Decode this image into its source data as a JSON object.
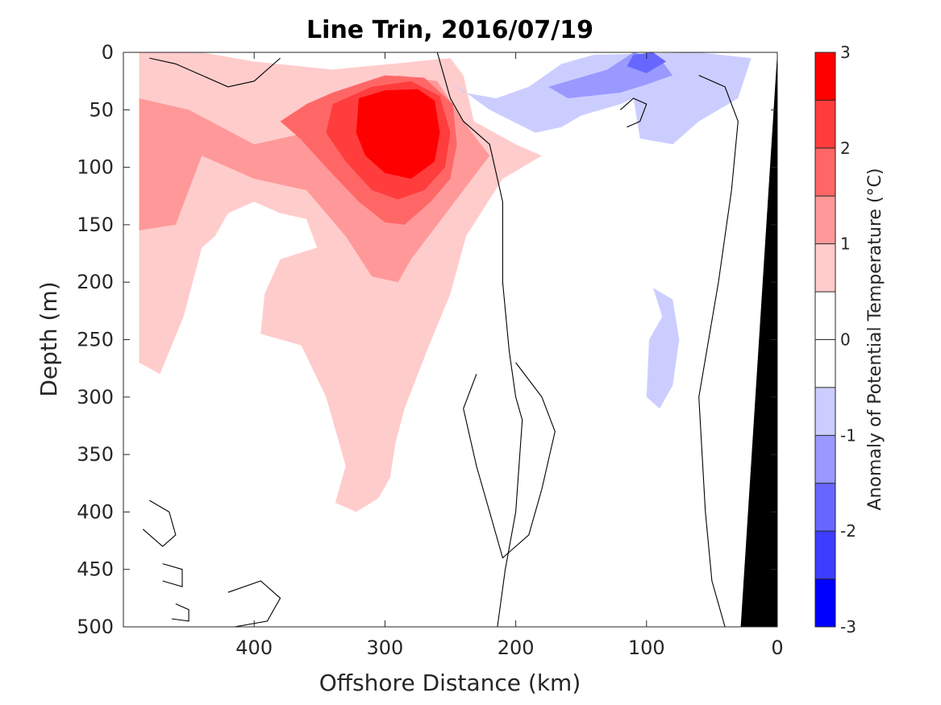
{
  "chart_data": {
    "type": "heatmap",
    "title": "Line Trin, 2016/07/19",
    "xlabel": "Offshore Distance (km)",
    "ylabel": "Depth (m)",
    "xlim": [
      500,
      0
    ],
    "ylim": [
      500,
      0
    ],
    "x_reversed": true,
    "y_reversed": true,
    "xticks": [
      400,
      300,
      200,
      100,
      0
    ],
    "yticks": [
      0,
      50,
      100,
      150,
      200,
      250,
      300,
      350,
      400,
      450,
      500
    ],
    "colorbar": {
      "label": "Anomaly of Potential Temperature (°C)",
      "ticks": [
        3,
        2,
        1,
        0,
        -1,
        -2,
        -3
      ],
      "levels": [
        3,
        2.5,
        2,
        1.5,
        1,
        0.5,
        0,
        -0.5,
        -1,
        -1.5,
        -2,
        -2.5,
        -3
      ],
      "colors": [
        "#ff0000",
        "#ff3d3d",
        "#ff6767",
        "#ff9999",
        "#ffcccc",
        "#ffffff",
        "#ffffff",
        "#cccdff",
        "#9999ff",
        "#6767ff",
        "#3d3dff",
        "#0000ff"
      ]
    },
    "regions": [
      {
        "name": "anomaly ~ +0.5 to +1",
        "level_low": 0.5,
        "color": "#ffcccc",
        "points": [
          [
            488,
            0
          ],
          [
            440,
            0
          ],
          [
            400,
            8
          ],
          [
            340,
            15
          ],
          [
            250,
            5
          ],
          [
            240,
            20
          ],
          [
            232,
            60
          ],
          [
            200,
            80
          ],
          [
            180,
            90
          ],
          [
            210,
            110
          ],
          [
            238,
            160
          ],
          [
            250,
            210
          ],
          [
            268,
            260
          ],
          [
            285,
            310
          ],
          [
            292,
            340
          ],
          [
            296,
            370
          ],
          [
            305,
            388
          ],
          [
            322,
            400
          ],
          [
            338,
            392
          ],
          [
            330,
            360
          ],
          [
            345,
            300
          ],
          [
            364,
            255
          ],
          [
            395,
            245
          ],
          [
            392,
            210
          ],
          [
            380,
            180
          ],
          [
            352,
            170
          ],
          [
            360,
            145
          ],
          [
            380,
            140
          ],
          [
            400,
            130
          ],
          [
            420,
            140
          ],
          [
            430,
            160
          ],
          [
            440,
            170
          ],
          [
            454,
            230
          ],
          [
            472,
            280
          ],
          [
            488,
            270
          ]
        ]
      },
      {
        "name": "anomaly ~ +1 to +1.5",
        "level_low": 1.0,
        "color": "#ff9999",
        "points": [
          [
            488,
            40
          ],
          [
            450,
            50
          ],
          [
            400,
            80
          ],
          [
            360,
            70
          ],
          [
            330,
            40
          ],
          [
            290,
            20
          ],
          [
            260,
            25
          ],
          [
            240,
            60
          ],
          [
            220,
            90
          ],
          [
            240,
            120
          ],
          [
            260,
            150
          ],
          [
            280,
            180
          ],
          [
            290,
            200
          ],
          [
            310,
            195
          ],
          [
            330,
            160
          ],
          [
            360,
            120
          ],
          [
            400,
            110
          ],
          [
            440,
            90
          ],
          [
            460,
            150
          ],
          [
            488,
            155
          ]
        ]
      },
      {
        "name": "anomaly ~ +1.5 to +2",
        "level_low": 1.5,
        "color": "#ff6767",
        "points": [
          [
            360,
            45
          ],
          [
            340,
            35
          ],
          [
            300,
            20
          ],
          [
            270,
            22
          ],
          [
            248,
            45
          ],
          [
            245,
            80
          ],
          [
            250,
            110
          ],
          [
            265,
            130
          ],
          [
            285,
            150
          ],
          [
            300,
            148
          ],
          [
            320,
            130
          ],
          [
            345,
            100
          ],
          [
            365,
            75
          ],
          [
            380,
            60
          ]
        ]
      },
      {
        "name": "anomaly ~ +2 to +2.5",
        "level_low": 2.0,
        "color": "#ff3d3d",
        "points": [
          [
            340,
            45
          ],
          [
            310,
            30
          ],
          [
            280,
            25
          ],
          [
            258,
            38
          ],
          [
            250,
            70
          ],
          [
            254,
            100
          ],
          [
            270,
            120
          ],
          [
            290,
            128
          ],
          [
            310,
            120
          ],
          [
            330,
            95
          ],
          [
            345,
            70
          ]
        ]
      },
      {
        "name": "anomaly ~ +2.5 to +3",
        "level_low": 2.5,
        "color": "#ff0000",
        "points": [
          [
            320,
            40
          ],
          [
            300,
            33
          ],
          [
            275,
            32
          ],
          [
            262,
            42
          ],
          [
            258,
            70
          ],
          [
            262,
            95
          ],
          [
            280,
            110
          ],
          [
            300,
            105
          ],
          [
            315,
            90
          ],
          [
            322,
            70
          ]
        ]
      },
      {
        "name": "anomaly ~ -0.5 to -1 (surface)",
        "level_low": -1.0,
        "color": "#cccdff",
        "points": [
          [
            250,
            25
          ],
          [
            240,
            35
          ],
          [
            215,
            40
          ],
          [
            190,
            30
          ],
          [
            165,
            10
          ],
          [
            140,
            2
          ],
          [
            60,
            0
          ],
          [
            20,
            5
          ],
          [
            30,
            40
          ],
          [
            60,
            60
          ],
          [
            80,
            80
          ],
          [
            105,
            75
          ],
          [
            110,
            40
          ],
          [
            120,
            45
          ],
          [
            150,
            55
          ],
          [
            165,
            65
          ],
          [
            185,
            70
          ],
          [
            220,
            50
          ]
        ]
      },
      {
        "name": "anomaly ~ -0.5 to -1 (subsurface)",
        "level_low": -1.0,
        "color": "#cccdff",
        "points": [
          [
            95,
            205
          ],
          [
            88,
            230
          ],
          [
            98,
            250
          ],
          [
            100,
            300
          ],
          [
            90,
            310
          ],
          [
            80,
            290
          ],
          [
            75,
            250
          ],
          [
            80,
            215
          ]
        ]
      },
      {
        "name": "anomaly ~ -1 to -1.5",
        "level_low": -1.5,
        "color": "#9999ff",
        "points": [
          [
            130,
            15
          ],
          [
            110,
            0
          ],
          [
            90,
            5
          ],
          [
            80,
            20
          ],
          [
            100,
            28
          ],
          [
            120,
            35
          ],
          [
            160,
            40
          ],
          [
            175,
            30
          ]
        ]
      },
      {
        "name": "anomaly ~ -1.5 to -2",
        "level_low": -2.0,
        "color": "#6767ff",
        "points": [
          [
            110,
            2
          ],
          [
            95,
            0
          ],
          [
            85,
            8
          ],
          [
            100,
            18
          ],
          [
            115,
            12
          ]
        ]
      }
    ],
    "zero_contours": [
      [
        [
          260,
          0
        ],
        [
          250,
          40
        ],
        [
          240,
          60
        ],
        [
          220,
          80
        ],
        [
          210,
          130
        ],
        [
          210,
          200
        ],
        [
          205,
          260
        ],
        [
          200,
          300
        ],
        [
          195,
          320
        ],
        [
          200,
          400
        ],
        [
          208,
          450
        ],
        [
          214,
          500
        ]
      ],
      [
        [
          200,
          270
        ],
        [
          180,
          300
        ],
        [
          170,
          330
        ],
        [
          180,
          380
        ],
        [
          190,
          420
        ],
        [
          210,
          440
        ],
        [
          220,
          400
        ],
        [
          230,
          360
        ],
        [
          240,
          310
        ],
        [
          230,
          280
        ]
      ],
      [
        [
          60,
          20
        ],
        [
          40,
          30
        ],
        [
          30,
          60
        ],
        [
          35,
          120
        ],
        [
          45,
          200
        ],
        [
          60,
          300
        ],
        [
          55,
          400
        ],
        [
          50,
          460
        ],
        [
          40,
          500
        ]
      ],
      [
        [
          480,
          5
        ],
        [
          460,
          10
        ],
        [
          440,
          20
        ],
        [
          420,
          30
        ],
        [
          400,
          25
        ],
        [
          380,
          5
        ]
      ],
      [
        [
          480,
          390
        ],
        [
          465,
          400
        ],
        [
          460,
          420
        ],
        [
          470,
          430
        ],
        [
          485,
          415
        ]
      ],
      [
        [
          470,
          445
        ],
        [
          455,
          450
        ],
        [
          455,
          465
        ],
        [
          470,
          460
        ]
      ],
      [
        [
          460,
          480
        ],
        [
          450,
          485
        ],
        [
          450,
          495
        ],
        [
          463,
          493
        ]
      ],
      [
        [
          420,
          470
        ],
        [
          395,
          460
        ],
        [
          380,
          475
        ],
        [
          390,
          495
        ],
        [
          415,
          500
        ]
      ],
      [
        [
          120,
          50
        ],
        [
          110,
          40
        ],
        [
          100,
          45
        ],
        [
          105,
          60
        ],
        [
          115,
          65
        ]
      ]
    ],
    "bathymetry_color": "#000000",
    "bathymetry_points": [
      [
        0,
        0
      ],
      [
        28,
        500
      ],
      [
        0,
        500
      ]
    ]
  }
}
